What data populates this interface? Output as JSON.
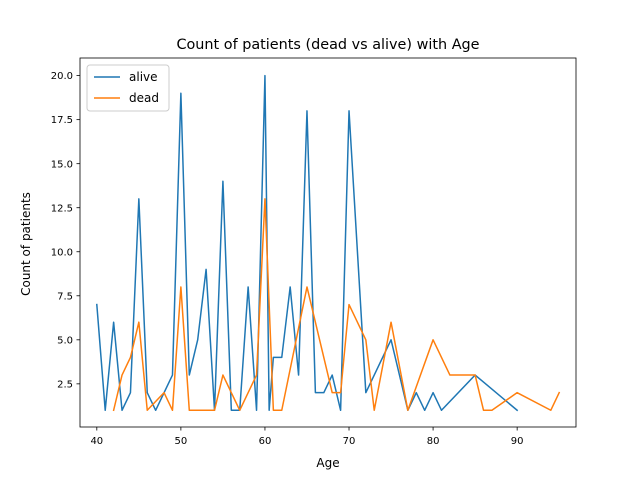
{
  "chart_data": {
    "type": "line",
    "title": "Count of patients (dead vs alive) with Age",
    "xlabel": "Age",
    "ylabel": "Count of patients",
    "xlim": [
      38,
      97
    ],
    "ylim": [
      0.05,
      21.0
    ],
    "xticks": [
      40,
      50,
      60,
      70,
      80,
      90
    ],
    "yticks": [
      2.5,
      5.0,
      7.5,
      10.0,
      12.5,
      15.0,
      17.5,
      20.0
    ],
    "ytick_labels": [
      "2.5",
      "5.0",
      "7.5",
      "10.0",
      "12.5",
      "15.0",
      "17.5",
      "20.0"
    ],
    "grid": false,
    "legend_position": "top-left",
    "series": [
      {
        "name": "alive",
        "color": "#1f77b4",
        "x": [
          40,
          41,
          42,
          43,
          44,
          45,
          46,
          47,
          48,
          49,
          50,
          51,
          52,
          53,
          54,
          55,
          56,
          57,
          58,
          59,
          60,
          60.5,
          61,
          62,
          63,
          64,
          65,
          66,
          67,
          68,
          69,
          70,
          72,
          73,
          75,
          77,
          78,
          79,
          80,
          81,
          85,
          90
        ],
        "y": [
          7,
          1,
          6,
          1,
          2,
          13,
          2,
          1,
          2,
          3,
          19,
          3,
          5,
          9,
          1,
          14,
          1,
          1,
          8,
          1,
          20,
          1,
          4,
          4,
          8,
          3,
          18,
          2,
          2,
          3,
          1,
          18,
          2,
          3,
          5,
          1,
          2,
          1,
          2,
          1,
          3,
          1
        ]
      },
      {
        "name": "dead",
        "color": "#ff7f0e",
        "x": [
          42,
          43,
          44,
          45,
          46,
          48,
          49,
          50,
          51,
          53,
          54,
          55,
          57,
          59,
          60,
          61,
          62,
          65,
          68,
          69,
          70,
          72,
          73,
          75,
          77,
          80,
          82,
          85,
          86,
          87,
          90,
          94,
          95
        ],
        "y": [
          1,
          3,
          4,
          6,
          1,
          2,
          1,
          8,
          1,
          1,
          1,
          3,
          1,
          3,
          13,
          1,
          1,
          8,
          2,
          2,
          7,
          5,
          1,
          6,
          1,
          5,
          3,
          3,
          1,
          1,
          2,
          1,
          2
        ]
      }
    ]
  }
}
